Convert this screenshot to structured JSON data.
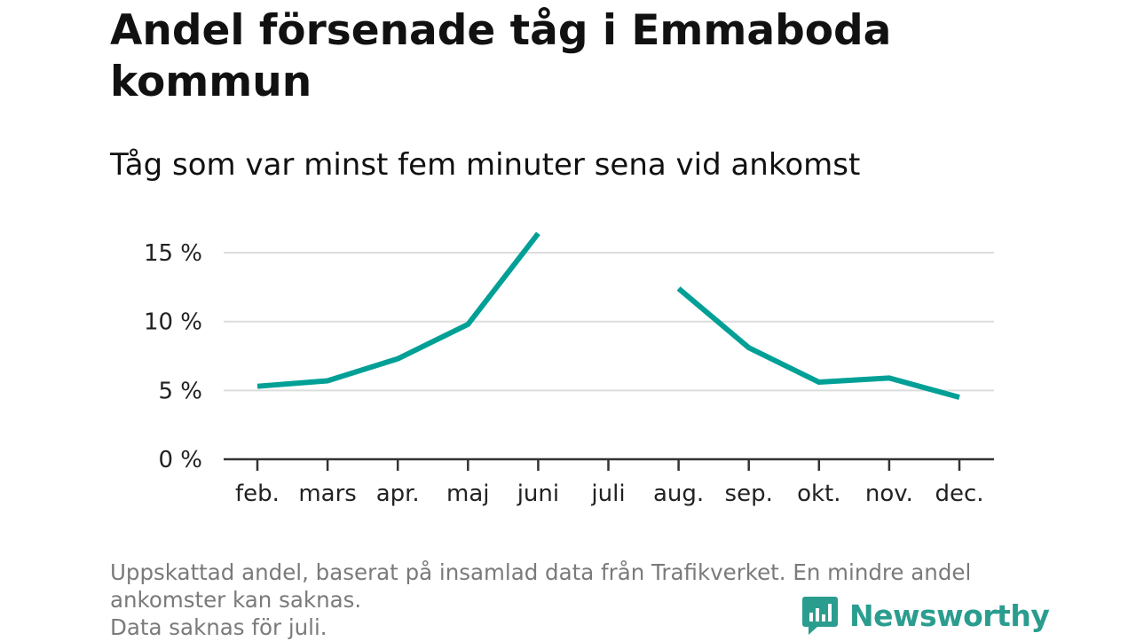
{
  "header": {
    "title": "Andel försenade tåg i Emmaboda kommun",
    "subtitle": "Tåg som var minst fem minuter sena vid ankomst"
  },
  "footnote": {
    "line1": "Uppskattad andel, baserat på insamlad data från Trafikverket. En mindre andel",
    "line2": "ankomster kan saknas.",
    "line3": "Data saknas för juli."
  },
  "brand": {
    "name": "Newsworthy",
    "icon": "newsworthy-logo-icon",
    "color": "#2a9d8f"
  },
  "chart_data": {
    "type": "line",
    "title": "Andel försenade tåg i Emmaboda kommun",
    "subtitle": "Tåg som var minst fem minuter sena vid ankomst",
    "categories": [
      "feb.",
      "mars",
      "apr.",
      "maj",
      "juni",
      "juli",
      "aug.",
      "sep.",
      "okt.",
      "nov.",
      "dec."
    ],
    "series": [
      {
        "values": [
          5.3,
          5.7,
          7.3,
          9.8,
          16.4,
          null,
          12.4,
          8.1,
          5.6,
          5.9,
          4.5
        ],
        "color": "#00a096"
      }
    ],
    "yticks": [
      0,
      5,
      10,
      15
    ],
    "ytick_labels": [
      "0 %",
      "5 %",
      "10 %",
      "15 %"
    ],
    "ylim": [
      0,
      17
    ],
    "grid": true,
    "legend": "none"
  }
}
